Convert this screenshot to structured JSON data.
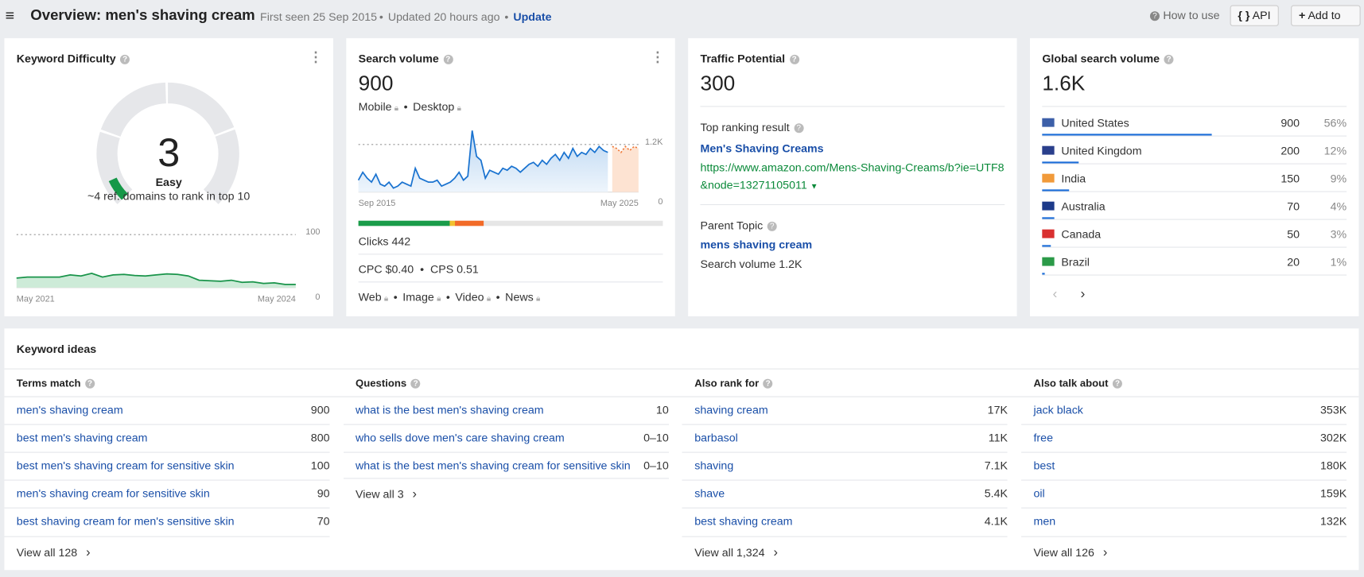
{
  "header": {
    "title": "Overview: men's shaving cream",
    "first_seen": "First seen 25 Sep 2015",
    "updated": "Updated 20 hours ago",
    "update": "Update",
    "how_to_use": "How to use",
    "api": "API",
    "add_to": "Add to"
  },
  "keyword_difficulty": {
    "title": "Keyword Difficulty",
    "value": 3,
    "label": "Easy",
    "note": "~4 ref. domains to rank in top 10",
    "history": {
      "type": "area",
      "ylim": [
        0,
        100
      ],
      "yticks": [
        0,
        100
      ],
      "x_labels": [
        "May 2021",
        "May 2024"
      ],
      "values": [
        18,
        20,
        20,
        20,
        20,
        24,
        22,
        27,
        20,
        24,
        25,
        23,
        22,
        24,
        26,
        25,
        22,
        14,
        13,
        12,
        14,
        10,
        11,
        8,
        9,
        6,
        6
      ]
    }
  },
  "search_volume": {
    "title": "Search volume",
    "value": 900,
    "devices": [
      "Mobile",
      "Desktop"
    ],
    "chart": {
      "type": "area",
      "ylim": [
        0,
        1600
      ],
      "yticks": [
        0,
        {
          "value": 1200,
          "label": "1.2K"
        }
      ],
      "x_labels": [
        "Sep 2015",
        "May 2025"
      ],
      "values": [
        300,
        500,
        350,
        250,
        450,
        200,
        150,
        250,
        100,
        150,
        250,
        200,
        150,
        600,
        350,
        300,
        250,
        250,
        300,
        150,
        200,
        250,
        350,
        500,
        300,
        400,
        1550,
        900,
        800,
        350,
        550,
        500,
        450,
        600,
        550,
        650,
        600,
        500,
        600,
        700,
        750,
        650,
        800,
        700,
        850,
        950,
        800,
        1000,
        850,
        1100,
        900,
        1000,
        950,
        1100,
        1000,
        1150,
        1050,
        1000
      ],
      "forecast": [
        1150,
        1100,
        1000,
        1150,
        1050,
        1150,
        1100
      ]
    },
    "clicks": "Clicks 442",
    "cpc": "CPC $0.40",
    "cps": "CPS 0.51",
    "serp_features": [
      "Web",
      "Image",
      "Video",
      "News"
    ]
  },
  "traffic_potential": {
    "title": "Traffic Potential",
    "value": 300,
    "top_result_label": "Top ranking result",
    "top_result_title": "Men's Shaving Creams",
    "top_result_url": "https://www.amazon.com/Mens-Shaving-Creams/b?ie=UTF8&node=13271105011",
    "parent_topic_label": "Parent Topic",
    "parent_topic": "mens shaving cream",
    "parent_volume": "Search volume 1.2K"
  },
  "global_search_volume": {
    "title": "Global search volume",
    "value": "1.6K",
    "countries": [
      {
        "name": "United States",
        "volume": 900,
        "share": 56,
        "share_label": "56%"
      },
      {
        "name": "United Kingdom",
        "volume": 200,
        "share": 12,
        "share_label": "12%"
      },
      {
        "name": "India",
        "volume": 150,
        "share": 9,
        "share_label": "9%"
      },
      {
        "name": "Australia",
        "volume": 70,
        "share": 4,
        "share_label": "4%"
      },
      {
        "name": "Canada",
        "volume": 50,
        "share": 3,
        "share_label": "3%"
      },
      {
        "name": "Brazil",
        "volume": 20,
        "share": 1,
        "share_label": "1%"
      }
    ]
  },
  "keyword_ideas": {
    "title": "Keyword ideas",
    "columns": [
      {
        "title": "Terms match",
        "items": [
          {
            "text": "men's shaving cream",
            "value": "900"
          },
          {
            "text": "best men's shaving cream",
            "value": "800"
          },
          {
            "text": "best men's shaving cream for sensitive skin",
            "value": "100"
          },
          {
            "text": "men's shaving cream for sensitive skin",
            "value": "90"
          },
          {
            "text": "best shaving cream for men's sensitive skin",
            "value": "70"
          }
        ],
        "view_all": "View all 128"
      },
      {
        "title": "Questions",
        "items": [
          {
            "text": "what is the best men's shaving cream",
            "value": "10"
          },
          {
            "text": "who sells dove men's care shaving cream",
            "value": "0–10"
          },
          {
            "text": "what is the best men's shaving cream for sensitive skin",
            "value": "0–10"
          }
        ],
        "view_all": "View all 3"
      },
      {
        "title": "Also rank for",
        "items": [
          {
            "text": "shaving cream",
            "value": "17K"
          },
          {
            "text": "barbasol",
            "value": "11K"
          },
          {
            "text": "shaving",
            "value": "7.1K"
          },
          {
            "text": "shave",
            "value": "5.4K"
          },
          {
            "text": "best shaving cream",
            "value": "4.1K"
          }
        ],
        "view_all": "View all 1,324"
      },
      {
        "title": "Also talk about",
        "items": [
          {
            "text": "jack black",
            "value": "353K"
          },
          {
            "text": "free",
            "value": "302K"
          },
          {
            "text": "best",
            "value": "180K"
          },
          {
            "text": "oil",
            "value": "159K"
          },
          {
            "text": "men",
            "value": "132K"
          }
        ],
        "view_all": "View all 126"
      }
    ]
  }
}
